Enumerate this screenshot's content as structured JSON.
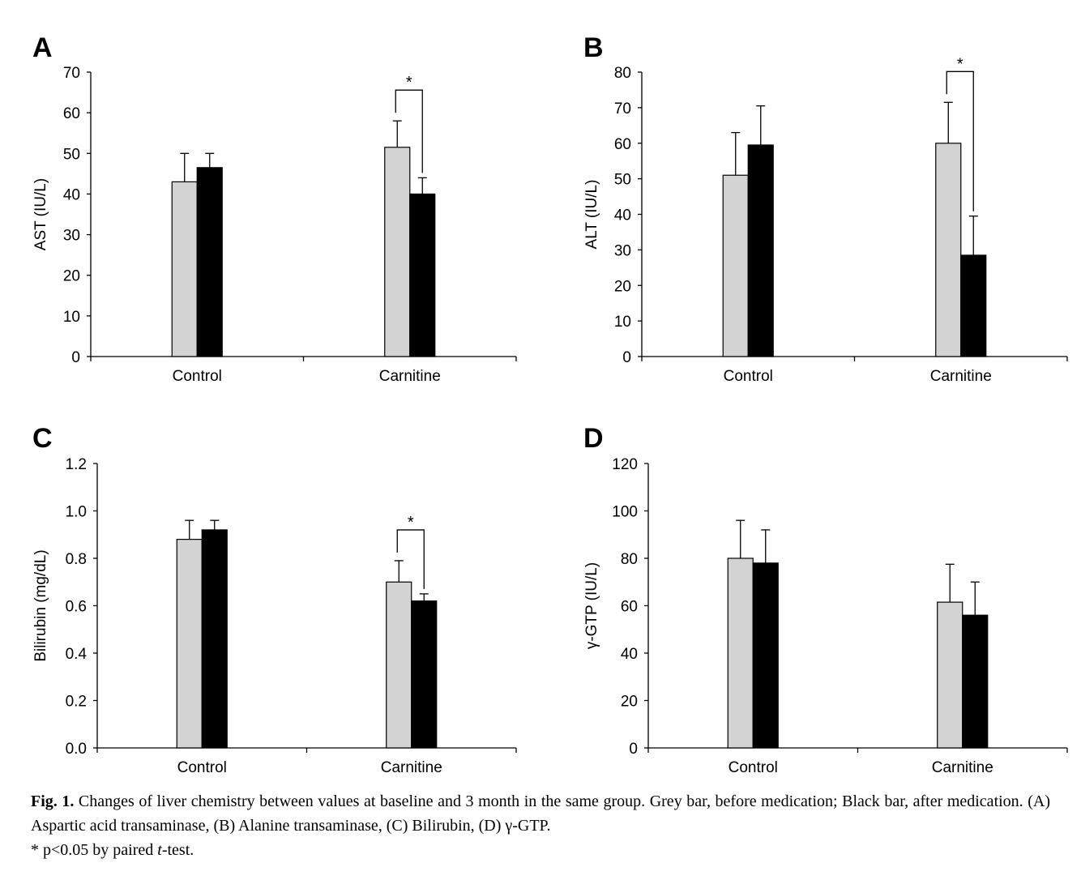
{
  "chart_data": [
    {
      "type": "bar",
      "panel": "A",
      "ylabel": "AST (IU/L)",
      "categories": [
        "Control",
        "Carnitine"
      ],
      "series": [
        {
          "name": "Grey bar",
          "values": [
            43,
            51.5
          ],
          "errors": [
            7,
            6.5
          ],
          "color": "#d3d3d3"
        },
        {
          "name": "Black bar",
          "values": [
            46.5,
            40
          ],
          "errors": [
            3.5,
            4
          ],
          "color": "#000000"
        }
      ],
      "ylim": [
        0,
        70
      ],
      "yticks": [
        "0",
        "10",
        "20",
        "30",
        "40",
        "50",
        "60",
        "70"
      ],
      "annotation": "*",
      "significant_category": 1
    },
    {
      "type": "bar",
      "panel": "B",
      "ylabel": "ALT (IU/L)",
      "categories": [
        "Control",
        "Carnitine"
      ],
      "series": [
        {
          "name": "Grey bar",
          "values": [
            51,
            60
          ],
          "errors": [
            12,
            11.5
          ],
          "color": "#d3d3d3"
        },
        {
          "name": "Black bar",
          "values": [
            59.5,
            28.5
          ],
          "errors": [
            11,
            11
          ],
          "color": "#000000"
        }
      ],
      "ylim": [
        0,
        80
      ],
      "yticks": [
        "0",
        "10",
        "20",
        "30",
        "40",
        "50",
        "60",
        "70",
        "80"
      ],
      "annotation": "*",
      "significant_category": 1
    },
    {
      "type": "bar",
      "panel": "C",
      "ylabel": "Bilirubin (mg/dL)",
      "categories": [
        "Control",
        "Carnitine"
      ],
      "series": [
        {
          "name": "Grey bar",
          "values": [
            0.88,
            0.7
          ],
          "errors": [
            0.08,
            0.09
          ],
          "color": "#d3d3d3"
        },
        {
          "name": "Black bar",
          "values": [
            0.92,
            0.62
          ],
          "errors": [
            0.04,
            0.03
          ],
          "color": "#000000"
        }
      ],
      "ylim": [
        0,
        1.2
      ],
      "yticks": [
        "0.0",
        "0.2",
        "0.4",
        "0.6",
        "0.8",
        "1.0",
        "1.2"
      ],
      "annotation": "*",
      "significant_category": 1
    },
    {
      "type": "bar",
      "panel": "D",
      "ylabel": "γ-GTP (IU/L)",
      "categories": [
        "Control",
        "Carnitine"
      ],
      "series": [
        {
          "name": "Grey bar",
          "values": [
            80,
            61.5
          ],
          "errors": [
            16,
            16
          ],
          "color": "#d3d3d3"
        },
        {
          "name": "Black bar",
          "values": [
            78,
            56
          ],
          "errors": [
            14,
            14
          ],
          "color": "#000000"
        }
      ],
      "ylim": [
        0,
        120
      ],
      "yticks": [
        "0",
        "20",
        "40",
        "60",
        "80",
        "100",
        "120"
      ],
      "annotation": "",
      "significant_category": null
    }
  ],
  "caption": {
    "fig_num": "Fig. 1.",
    "text": " Changes of liver chemistry between values at baseline and 3 month in the same group. Grey bar, before medication; Black bar, after medication. (A) Aspartic acid transaminase, (B) Alanine transaminase, (C) Bilirubin, (D) γ-GTP.",
    "footnote_pre": "* p<0.05 by paired ",
    "footnote_italic": "t",
    "footnote_post": "-test."
  }
}
